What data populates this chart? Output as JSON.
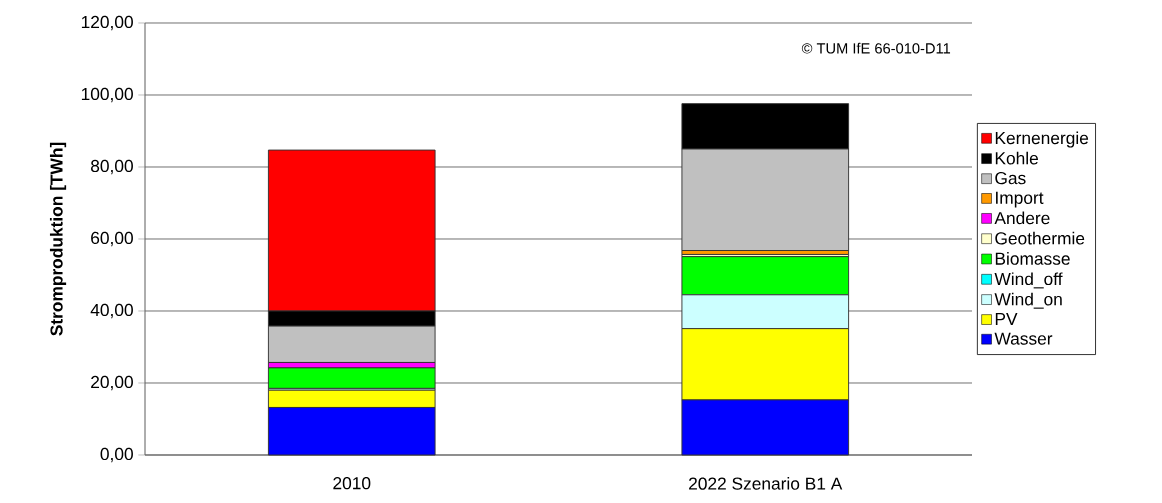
{
  "chart_data": {
    "type": "bar",
    "stacked": true,
    "ylabel": "Stromproduktion [TWh]",
    "categories": [
      "2010",
      "2022 Szenario B1 A"
    ],
    "series": [
      {
        "name": "Wasser",
        "color": "#0000ff",
        "values": [
          13.2,
          15.3
        ]
      },
      {
        "name": "PV",
        "color": "#ffff00",
        "values": [
          4.8,
          19.8
        ]
      },
      {
        "name": "Wind_on",
        "color": "#ccffff",
        "values": [
          0.5,
          9.4
        ]
      },
      {
        "name": "Wind_off",
        "color": "#00ffff",
        "values": [
          0,
          0
        ]
      },
      {
        "name": "Biomasse",
        "color": "#00ff00",
        "values": [
          5.7,
          10.6
        ]
      },
      {
        "name": "Geothermie",
        "color": "#ffffcc",
        "values": [
          0,
          0.6
        ]
      },
      {
        "name": "Andere",
        "color": "#ff00ff",
        "values": [
          1.5,
          null
        ]
      },
      {
        "name": "Import",
        "color": "#ff9900",
        "values": [
          0,
          1.1
        ]
      },
      {
        "name": "Gas",
        "color": "#c0c0c0",
        "values": [
          10.1,
          28.2
        ]
      },
      {
        "name": "Kohle",
        "color": "#000000",
        "values": [
          4.2,
          12.6
        ]
      },
      {
        "name": "Kernenergie",
        "color": "#ff0000",
        "values": [
          44.7,
          0
        ]
      }
    ],
    "ylim": [
      0,
      120
    ],
    "yticks": [
      {
        "value": 0,
        "label": "0,00"
      },
      {
        "value": 20,
        "label": "20,00"
      },
      {
        "value": 40,
        "label": "40,00"
      },
      {
        "value": 60,
        "label": "60,00"
      },
      {
        "value": 80,
        "label": "80,00"
      },
      {
        "value": 100,
        "label": "100,00"
      },
      {
        "value": 120,
        "label": "120,00"
      }
    ],
    "grid": "y",
    "legend": "right",
    "annotations": [
      "© TUM IfE 66-010-D11"
    ]
  }
}
